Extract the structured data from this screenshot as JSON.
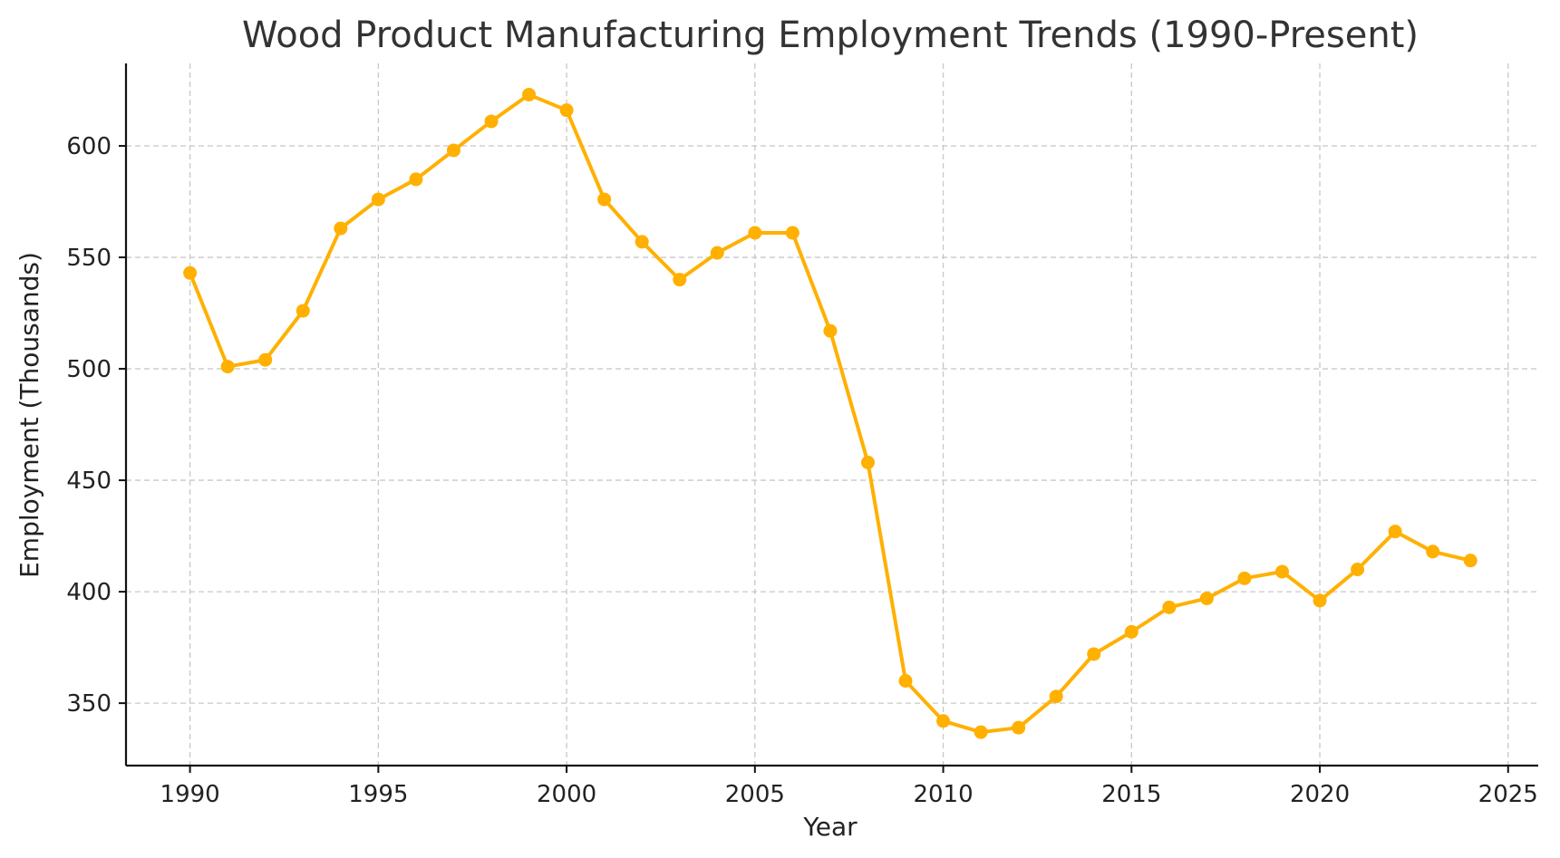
{
  "chart_data": {
    "type": "line",
    "title": "Wood Product Manufacturing Employment Trends (1990-Present)",
    "xlabel": "Year",
    "ylabel": "Employment (Thousands)",
    "xlim": [
      1988.3,
      2025.8
    ],
    "ylim": [
      322,
      637
    ],
    "x_ticks": [
      1990,
      1995,
      2000,
      2005,
      2010,
      2015,
      2020,
      2025
    ],
    "y_ticks": [
      350,
      400,
      450,
      500,
      550,
      600
    ],
    "grid": true,
    "legend": null,
    "series": [
      {
        "name": "Employment",
        "color": "#FFB000",
        "marker": "circle",
        "x": [
          1990,
          1991,
          1992,
          1993,
          1994,
          1995,
          1996,
          1997,
          1998,
          1999,
          2000,
          2001,
          2002,
          2003,
          2004,
          2005,
          2006,
          2007,
          2008,
          2009,
          2010,
          2011,
          2012,
          2013,
          2014,
          2015,
          2016,
          2017,
          2018,
          2019,
          2020,
          2021,
          2022,
          2023,
          2024
        ],
        "values": [
          543,
          501,
          504,
          526,
          563,
          576,
          585,
          598,
          611,
          623,
          616,
          576,
          557,
          540,
          552,
          561,
          561,
          517,
          458,
          360,
          342,
          337,
          339,
          353,
          372,
          382,
          393,
          397,
          406,
          409,
          396,
          410,
          427,
          418,
          414
        ]
      }
    ]
  }
}
